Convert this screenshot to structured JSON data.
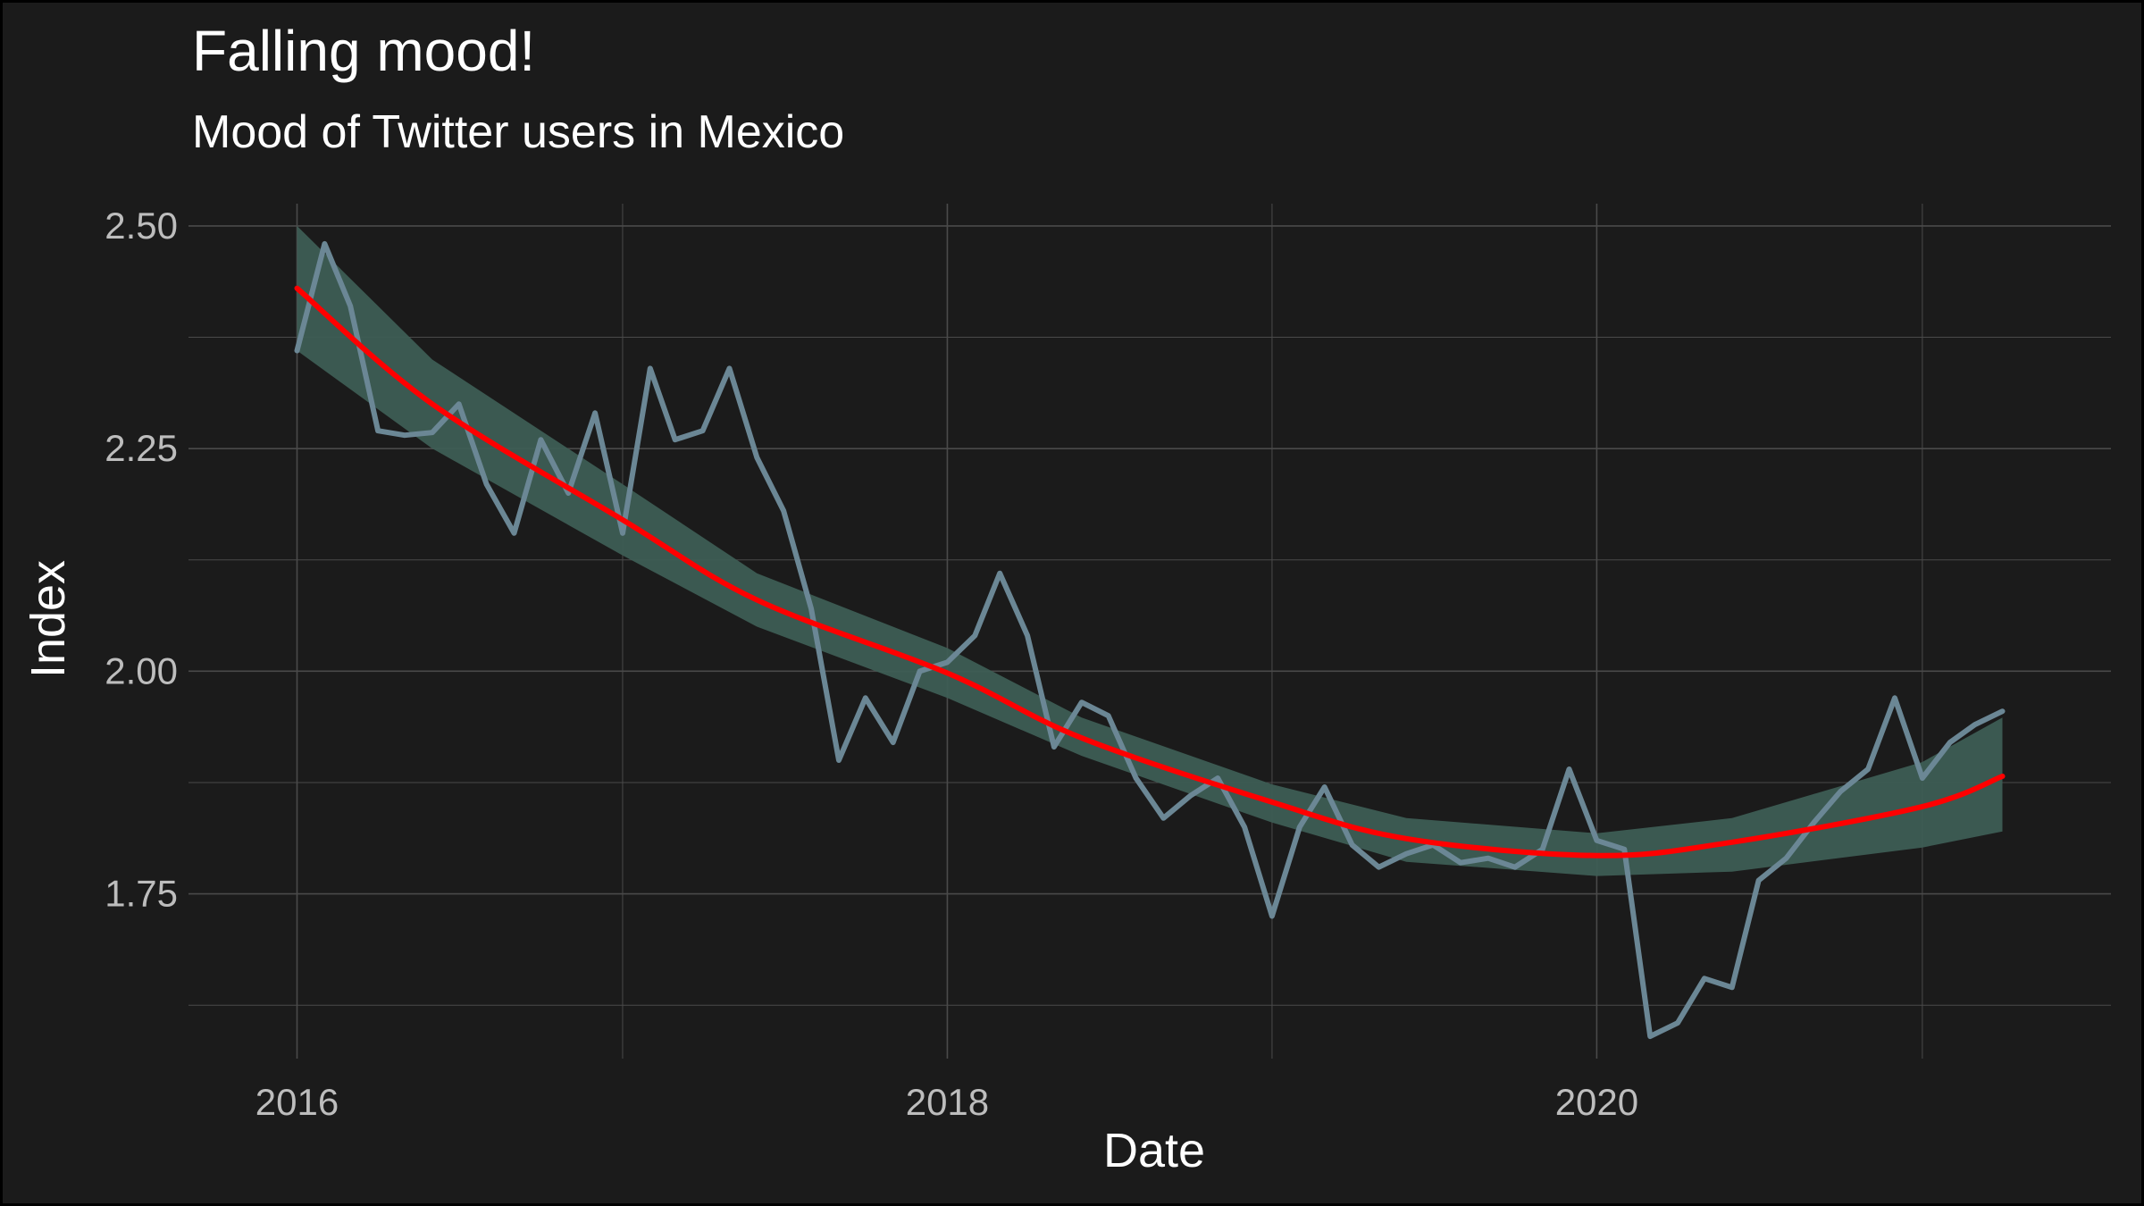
{
  "chart_data": {
    "type": "line",
    "title": "Falling mood!",
    "subtitle": "Mood of Twitter users in Mexico",
    "xlabel": "Date",
    "ylabel": "Index",
    "xlim": [
      "2015-09-01",
      "2021-08-01"
    ],
    "ylim": [
      1.565,
      2.525
    ],
    "x_ticks": [
      "2016",
      "2018",
      "2020"
    ],
    "y_ticks": [
      "1.75",
      "2.00",
      "2.25",
      "2.50"
    ],
    "grid": true,
    "legend": "none",
    "colors": {
      "background": "#1b1b1b",
      "grid": "#4a4a4a",
      "line": "#6b8795",
      "band": "#3d5d54",
      "trend": "#ff0000"
    },
    "series": [
      {
        "x": [
          "2016-01",
          "2016-02",
          "2016-03",
          "2016-04",
          "2016-05",
          "2016-06",
          "2016-07",
          "2016-08",
          "2016-09",
          "2016-10",
          "2016-11",
          "2016-12",
          "2017-01",
          "2017-02",
          "2017-03",
          "2017-04",
          "2017-05",
          "2017-06",
          "2017-07",
          "2017-08",
          "2017-09",
          "2017-10",
          "2017-11",
          "2017-12",
          "2018-01",
          "2018-02",
          "2018-03",
          "2018-04",
          "2018-05",
          "2018-06",
          "2018-07",
          "2018-08",
          "2018-09",
          "2018-10",
          "2018-11",
          "2018-12",
          "2019-01",
          "2019-02",
          "2019-03",
          "2019-04",
          "2019-05",
          "2019-06",
          "2019-07",
          "2019-08",
          "2019-09",
          "2019-10",
          "2019-11",
          "2019-12",
          "2020-01",
          "2020-02",
          "2020-03",
          "2020-04",
          "2020-05",
          "2020-06",
          "2020-07",
          "2020-08",
          "2020-09",
          "2020-10",
          "2020-11",
          "2020-12",
          "2021-01",
          "2021-02",
          "2021-03",
          "2021-04"
        ],
        "values": [
          2.36,
          2.48,
          2.41,
          2.27,
          2.265,
          2.268,
          2.3,
          2.21,
          2.155,
          2.26,
          2.2,
          2.29,
          2.155,
          2.34,
          2.26,
          2.27,
          2.34,
          2.24,
          2.18,
          2.07,
          1.9,
          1.97,
          1.92,
          2.0,
          2.01,
          2.04,
          2.11,
          2.04,
          1.915,
          1.965,
          1.95,
          1.88,
          1.835,
          1.86,
          1.88,
          1.825,
          1.725,
          1.825,
          1.87,
          1.805,
          1.78,
          1.795,
          1.805,
          1.785,
          1.79,
          1.78,
          1.8,
          1.89,
          1.81,
          1.8,
          1.59,
          1.605,
          1.655,
          1.645,
          1.765,
          1.79,
          1.83,
          1.865,
          1.89,
          1.97,
          1.88,
          1.92,
          1.94,
          1.955
        ]
      }
    ],
    "trend": {
      "x": [
        "2016-01",
        "2016-06",
        "2017-01",
        "2017-06",
        "2018-01",
        "2018-06",
        "2019-01",
        "2019-06",
        "2020-01",
        "2020-06",
        "2021-01",
        "2021-04"
      ],
      "fit": [
        2.43,
        2.3,
        2.17,
        2.08,
        1.998,
        1.925,
        1.853,
        1.812,
        1.793,
        1.808,
        1.848,
        1.882
      ],
      "lower": [
        2.36,
        2.25,
        2.13,
        2.05,
        1.97,
        1.905,
        1.83,
        1.786,
        1.77,
        1.775,
        1.802,
        1.82
      ],
      "upper": [
        2.5,
        2.35,
        2.21,
        2.11,
        2.026,
        1.948,
        1.873,
        1.835,
        1.818,
        1.835,
        1.898,
        1.948
      ]
    }
  }
}
